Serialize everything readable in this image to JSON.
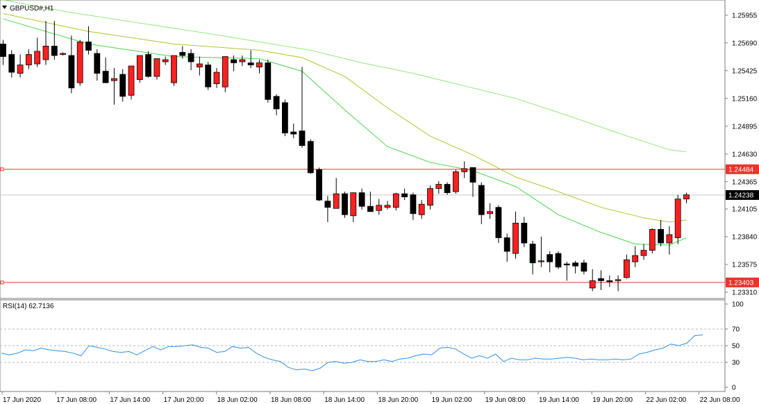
{
  "chart_data": [
    {
      "type": "candlestick",
      "symbol_label": "GBPUSD#,H1",
      "ylim": [
        1.2325,
        1.261
      ],
      "price_ticks": [
        1.25955,
        1.2569,
        1.25425,
        1.2516,
        1.24895,
        1.2463,
        1.24365,
        1.24105,
        1.2384,
        1.23575,
        1.2331
      ],
      "price_tick_labels": [
        "1.25955",
        "1.25690",
        "1.25425",
        "1.25160",
        "1.24895",
        "1.24630",
        "1.24365",
        "1.24105",
        "1.23840",
        "1.23575",
        "1.23310"
      ],
      "time_labels": [
        "17 Jun 2020",
        "17 Jun 08:00",
        "17 Jun 14:00",
        "17 Jun 20:00",
        "18 Jun 02:00",
        "18 Jun 08:00",
        "18 Jun 14:00",
        "18 Jun 20:00",
        "19 Jun 02:00",
        "19 Jun 08:00",
        "19 Jun 14:00",
        "19 Jun 20:00",
        "22 Jun 02:00",
        "22 Jun 08:00"
      ],
      "horizontal_levels": [
        {
          "label": "1.24484",
          "value": 1.24484,
          "color": "#e8342a"
        },
        {
          "label": "1.23403",
          "value": 1.23403,
          "color": "#e8342a"
        }
      ],
      "current_price": {
        "label": "1.24238",
        "value": 1.24238,
        "color": "#c8c8c8"
      },
      "bull_color": "#ff2020",
      "bear_color": "#000000",
      "candles": [
        {
          "o": 1.2568,
          "h": 1.2572,
          "l": 1.2548,
          "c": 1.2556
        },
        {
          "o": 1.2558,
          "h": 1.2562,
          "l": 1.2536,
          "c": 1.2541
        },
        {
          "o": 1.254,
          "h": 1.2558,
          "l": 1.2536,
          "c": 1.2548
        },
        {
          "o": 1.2548,
          "h": 1.2563,
          "l": 1.2544,
          "c": 1.2558
        },
        {
          "o": 1.2549,
          "h": 1.2574,
          "l": 1.2546,
          "c": 1.2561
        },
        {
          "o": 1.2553,
          "h": 1.259,
          "l": 1.2548,
          "c": 1.2566
        },
        {
          "o": 1.2566,
          "h": 1.259,
          "l": 1.2553,
          "c": 1.2557
        },
        {
          "o": 1.2558,
          "h": 1.256,
          "l": 1.2557,
          "c": 1.2559
        },
        {
          "o": 1.2557,
          "h": 1.2576,
          "l": 1.2521,
          "c": 1.2526
        },
        {
          "o": 1.2531,
          "h": 1.2572,
          "l": 1.2528,
          "c": 1.257
        },
        {
          "o": 1.257,
          "h": 1.2585,
          "l": 1.2558,
          "c": 1.2562
        },
        {
          "o": 1.2559,
          "h": 1.2563,
          "l": 1.2533,
          "c": 1.254
        },
        {
          "o": 1.2542,
          "h": 1.2555,
          "l": 1.2532,
          "c": 1.2531
        },
        {
          "o": 1.2533,
          "h": 1.2545,
          "l": 1.251,
          "c": 1.2535
        },
        {
          "o": 1.2539,
          "h": 1.2544,
          "l": 1.2513,
          "c": 1.2518
        },
        {
          "o": 1.2519,
          "h": 1.2547,
          "l": 1.2515,
          "c": 1.2547
        },
        {
          "o": 1.2534,
          "h": 1.2556,
          "l": 1.2531,
          "c": 1.2557
        },
        {
          "o": 1.2558,
          "h": 1.2561,
          "l": 1.2536,
          "c": 1.2537
        },
        {
          "o": 1.2537,
          "h": 1.2553,
          "l": 1.2534,
          "c": 1.2554
        },
        {
          "o": 1.2551,
          "h": 1.2556,
          "l": 1.2548,
          "c": 1.2553
        },
        {
          "o": 1.2531,
          "h": 1.2555,
          "l": 1.2528,
          "c": 1.2557
        },
        {
          "o": 1.256,
          "h": 1.2566,
          "l": 1.2554,
          "c": 1.2557
        },
        {
          "o": 1.2559,
          "h": 1.2563,
          "l": 1.2543,
          "c": 1.2551
        },
        {
          "o": 1.2546,
          "h": 1.2556,
          "l": 1.2538,
          "c": 1.2549
        },
        {
          "o": 1.2548,
          "h": 1.2551,
          "l": 1.2524,
          "c": 1.2527
        },
        {
          "o": 1.253,
          "h": 1.2545,
          "l": 1.2526,
          "c": 1.2541
        },
        {
          "o": 1.2527,
          "h": 1.2555,
          "l": 1.2522,
          "c": 1.2556
        },
        {
          "o": 1.2553,
          "h": 1.2557,
          "l": 1.2542,
          "c": 1.255
        },
        {
          "o": 1.2551,
          "h": 1.2557,
          "l": 1.2547,
          "c": 1.2553
        },
        {
          "o": 1.255,
          "h": 1.2562,
          "l": 1.2545,
          "c": 1.2548
        },
        {
          "o": 1.2546,
          "h": 1.2553,
          "l": 1.254,
          "c": 1.255
        },
        {
          "o": 1.255,
          "h": 1.2553,
          "l": 1.2512,
          "c": 1.2515
        },
        {
          "o": 1.2518,
          "h": 1.252,
          "l": 1.25,
          "c": 1.2506
        },
        {
          "o": 1.2512,
          "h": 1.2515,
          "l": 1.248,
          "c": 1.2483
        },
        {
          "o": 1.2484,
          "h": 1.2492,
          "l": 1.2478,
          "c": 1.2482
        },
        {
          "o": 1.2485,
          "h": 1.2546,
          "l": 1.2469,
          "c": 1.2471
        },
        {
          "o": 1.2475,
          "h": 1.2477,
          "l": 1.2444,
          "c": 1.2445
        },
        {
          "o": 1.2448,
          "h": 1.245,
          "l": 1.2418,
          "c": 1.2419
        },
        {
          "o": 1.2418,
          "h": 1.2423,
          "l": 1.2398,
          "c": 1.2412
        },
        {
          "o": 1.2411,
          "h": 1.244,
          "l": 1.2411,
          "c": 1.2425
        },
        {
          "o": 1.2425,
          "h": 1.2427,
          "l": 1.2402,
          "c": 1.2405
        },
        {
          "o": 1.2404,
          "h": 1.2426,
          "l": 1.2398,
          "c": 1.2426
        },
        {
          "o": 1.2426,
          "h": 1.243,
          "l": 1.241,
          "c": 1.2413
        },
        {
          "o": 1.2413,
          "h": 1.2427,
          "l": 1.241,
          "c": 1.2408
        },
        {
          "o": 1.2409,
          "h": 1.242,
          "l": 1.2405,
          "c": 1.2414
        },
        {
          "o": 1.2412,
          "h": 1.2418,
          "l": 1.241,
          "c": 1.2414
        },
        {
          "o": 1.2412,
          "h": 1.2426,
          "l": 1.2409,
          "c": 1.2425
        },
        {
          "o": 1.2425,
          "h": 1.243,
          "l": 1.2419,
          "c": 1.2422
        },
        {
          "o": 1.2424,
          "h": 1.2426,
          "l": 1.24,
          "c": 1.2406
        },
        {
          "o": 1.2405,
          "h": 1.2419,
          "l": 1.2401,
          "c": 1.2415
        },
        {
          "o": 1.2414,
          "h": 1.2433,
          "l": 1.241,
          "c": 1.243
        },
        {
          "o": 1.243,
          "h": 1.2437,
          "l": 1.2425,
          "c": 1.2434
        },
        {
          "o": 1.2434,
          "h": 1.2436,
          "l": 1.2424,
          "c": 1.2426
        },
        {
          "o": 1.2427,
          "h": 1.2448,
          "l": 1.2425,
          "c": 1.2446
        },
        {
          "o": 1.2446,
          "h": 1.2456,
          "l": 1.244,
          "c": 1.2449
        },
        {
          "o": 1.245,
          "h": 1.245,
          "l": 1.2422,
          "c": 1.2436
        },
        {
          "o": 1.2433,
          "h": 1.2436,
          "l": 1.2396,
          "c": 1.2405
        },
        {
          "o": 1.2406,
          "h": 1.2416,
          "l": 1.2401,
          "c": 1.2408
        },
        {
          "o": 1.2412,
          "h": 1.2414,
          "l": 1.2378,
          "c": 1.2383
        },
        {
          "o": 1.2383,
          "h": 1.2387,
          "l": 1.236,
          "c": 1.237
        },
        {
          "o": 1.2368,
          "h": 1.2408,
          "l": 1.2363,
          "c": 1.2397
        },
        {
          "o": 1.2397,
          "h": 1.2403,
          "l": 1.2374,
          "c": 1.2378
        },
        {
          "o": 1.2377,
          "h": 1.238,
          "l": 1.2348,
          "c": 1.2359
        },
        {
          "o": 1.236,
          "h": 1.2384,
          "l": 1.2355,
          "c": 1.2361
        },
        {
          "o": 1.2367,
          "h": 1.237,
          "l": 1.235,
          "c": 1.236
        },
        {
          "o": 1.2368,
          "h": 1.237,
          "l": 1.2353,
          "c": 1.2355
        },
        {
          "o": 1.2358,
          "h": 1.236,
          "l": 1.2342,
          "c": 1.2357
        },
        {
          "o": 1.2359,
          "h": 1.2361,
          "l": 1.2349,
          "c": 1.2356
        },
        {
          "o": 1.2359,
          "h": 1.2362,
          "l": 1.2348,
          "c": 1.2351
        },
        {
          "o": 1.2335,
          "h": 1.2353,
          "l": 1.2332,
          "c": 1.2342
        },
        {
          "o": 1.2344,
          "h": 1.2352,
          "l": 1.2333,
          "c": 1.2342
        },
        {
          "o": 1.2342,
          "h": 1.2347,
          "l": 1.2336,
          "c": 1.2341
        },
        {
          "o": 1.2342,
          "h": 1.2347,
          "l": 1.2332,
          "c": 1.2343
        },
        {
          "o": 1.2345,
          "h": 1.2367,
          "l": 1.2344,
          "c": 1.2362
        },
        {
          "o": 1.236,
          "h": 1.2375,
          "l": 1.2355,
          "c": 1.2366
        },
        {
          "o": 1.2366,
          "h": 1.2377,
          "l": 1.2362,
          "c": 1.2371
        },
        {
          "o": 1.2371,
          "h": 1.2392,
          "l": 1.2368,
          "c": 1.2391
        },
        {
          "o": 1.2391,
          "h": 1.24,
          "l": 1.2375,
          "c": 1.2378
        },
        {
          "o": 1.2378,
          "h": 1.2394,
          "l": 1.2367,
          "c": 1.2386
        },
        {
          "o": 1.2383,
          "h": 1.2424,
          "l": 1.2377,
          "c": 1.242
        },
        {
          "o": 1.242,
          "h": 1.2426,
          "l": 1.2416,
          "c": 1.2424
        }
      ],
      "moving_averages": [
        {
          "color": "#4cd44c",
          "x": [
            0,
            10,
            20,
            30,
            35,
            40,
            45,
            50,
            55,
            60,
            65,
            70,
            74,
            78,
            80
          ],
          "y": [
            1.2592,
            1.2568,
            1.2556,
            1.2554,
            1.2542,
            1.2505,
            1.247,
            1.2455,
            1.2447,
            1.2432,
            1.2405,
            1.2388,
            1.2377,
            1.2376,
            1.2383
          ]
        },
        {
          "color": "#a8c830",
          "x": [
            0,
            10,
            20,
            30,
            35,
            40,
            45,
            50,
            55,
            60,
            65,
            70,
            75,
            78,
            80
          ],
          "y": [
            1.2597,
            1.258,
            1.2568,
            1.2562,
            1.2555,
            1.2537,
            1.2507,
            1.248,
            1.2462,
            1.2441,
            1.2427,
            1.2412,
            1.2402,
            1.2398,
            1.24
          ]
        },
        {
          "color": "#96e87a",
          "x": [
            0,
            8,
            16,
            24,
            30,
            36,
            42,
            48,
            54,
            60,
            66,
            72,
            78,
            80
          ],
          "y": [
            1.261,
            1.2598,
            1.2588,
            1.2578,
            1.257,
            1.2562,
            1.255,
            1.254,
            1.2528,
            1.2516,
            1.25,
            1.2483,
            1.2467,
            1.2465
          ]
        }
      ]
    },
    {
      "type": "line",
      "indicator_label": "RSI(14) 62.7136",
      "ylim": [
        0,
        100
      ],
      "ticks": [
        100,
        70,
        50,
        30,
        0
      ],
      "tick_labels": [
        "100",
        "70",
        "50",
        "30",
        "0"
      ],
      "levels": [
        70,
        50,
        30
      ],
      "line_color": "#2f8ee6",
      "values": [
        41,
        39,
        41,
        45,
        44,
        47,
        45,
        44,
        43,
        41,
        38,
        50,
        48,
        46,
        43,
        42,
        43,
        39,
        44,
        49,
        45,
        49,
        49,
        50,
        51,
        48,
        47,
        42,
        43,
        49,
        47,
        48,
        41,
        36,
        33,
        31,
        24,
        21,
        22,
        20,
        23,
        30,
        31,
        29,
        30,
        33,
        31,
        31,
        33,
        31,
        34,
        35,
        38,
        40,
        39,
        47,
        48,
        46,
        40,
        35,
        38,
        35,
        40,
        31,
        35,
        33,
        33,
        35,
        34,
        34,
        35,
        36,
        35,
        33,
        34,
        33,
        33,
        34,
        33,
        34,
        40,
        42,
        45,
        47,
        52,
        50,
        53,
        62,
        63
      ]
    }
  ]
}
